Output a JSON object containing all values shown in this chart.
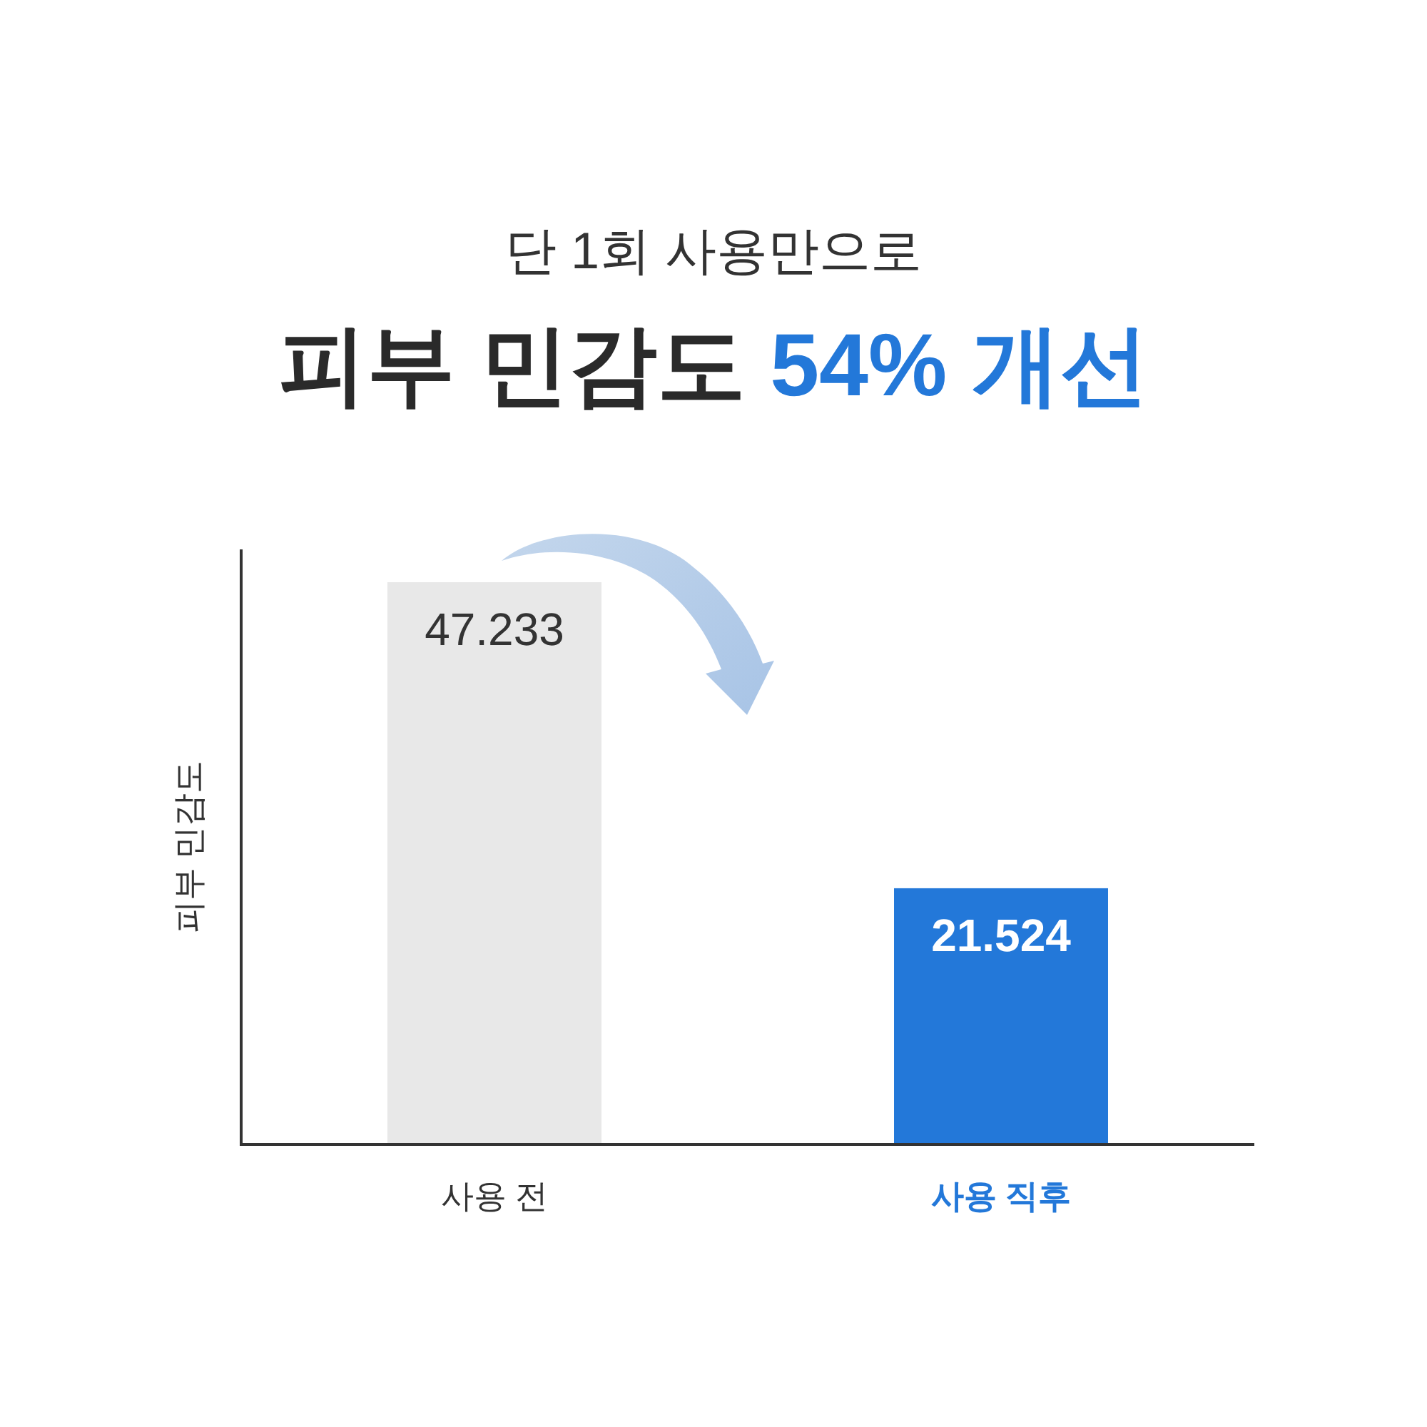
{
  "chart_data": {
    "type": "bar",
    "subtitle": "단 1회 사용만으로",
    "title": "피부 민감도 54% 개선",
    "ylabel": "피부 민감도",
    "categories": [
      "사용 전",
      "사용 직후"
    ],
    "values": [
      47.233,
      21.524
    ],
    "data_labels": true,
    "colors": [
      "#e8e8e8",
      "#2378d9"
    ]
  }
}
